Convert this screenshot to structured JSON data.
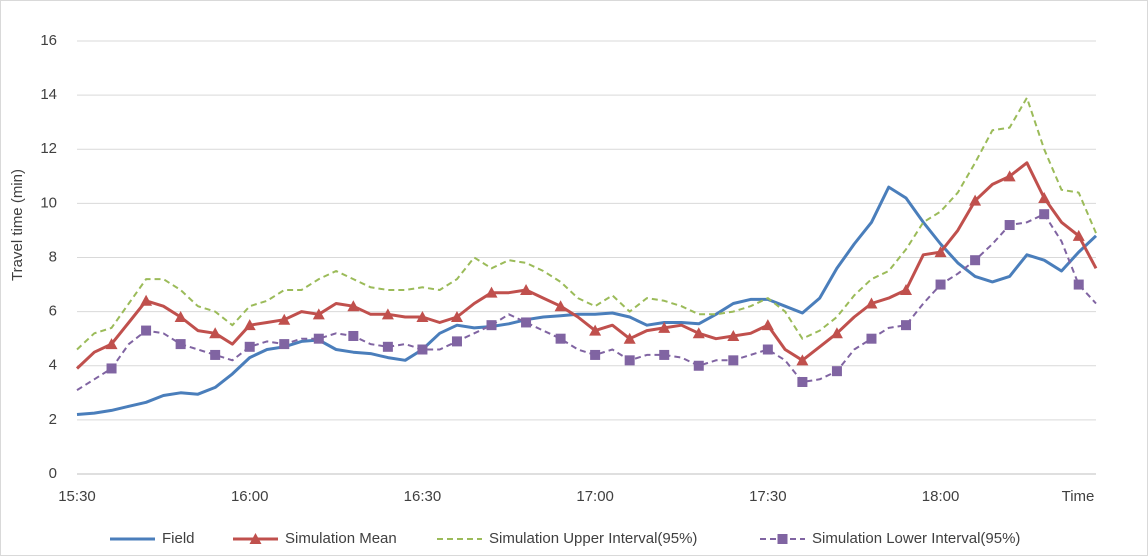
{
  "chart_data": {
    "type": "line",
    "y_label": "Travel time (min)",
    "x_label": "Time",
    "categories": [
      "15:30",
      null,
      null,
      null,
      null,
      null,
      null,
      null,
      null,
      null,
      "16:00",
      null,
      null,
      null,
      null,
      null,
      null,
      null,
      null,
      null,
      "16:30",
      null,
      null,
      null,
      null,
      null,
      null,
      null,
      null,
      null,
      "17:00",
      null,
      null,
      null,
      null,
      null,
      null,
      null,
      null,
      null,
      "17:30",
      null,
      null,
      null,
      null,
      null,
      null,
      null,
      null,
      null,
      "18:00",
      null,
      null,
      null,
      null,
      null,
      null,
      null,
      null,
      null
    ],
    "series": [
      {
        "name": "Field",
        "color": "#4a7ebb",
        "style": "solid",
        "marker": "none",
        "values": [
          2.2,
          2.25,
          2.35,
          2.5,
          2.65,
          2.9,
          3.0,
          2.95,
          3.2,
          3.7,
          4.3,
          4.6,
          4.7,
          4.9,
          4.95,
          4.6,
          4.5,
          4.45,
          4.3,
          4.2,
          4.6,
          5.2,
          5.5,
          5.4,
          5.45,
          5.55,
          5.7,
          5.8,
          5.85,
          5.9,
          5.9,
          5.95,
          5.8,
          5.5,
          5.6,
          5.6,
          5.55,
          5.9,
          6.3,
          6.45,
          6.45,
          6.2,
          5.95,
          6.5,
          7.6,
          8.5,
          9.3,
          10.6,
          10.2,
          9.3,
          8.5,
          7.8,
          7.3,
          7.1,
          7.3,
          8.1,
          7.9,
          7.5,
          8.2,
          8.8
        ]
      },
      {
        "name": "Simulation Mean",
        "color": "#c0504d",
        "style": "solid",
        "marker": "triangle",
        "values": [
          3.9,
          4.5,
          4.8,
          5.6,
          6.4,
          6.2,
          5.8,
          5.3,
          5.2,
          4.8,
          5.5,
          5.6,
          5.7,
          6.0,
          5.9,
          6.3,
          6.2,
          5.9,
          5.9,
          5.8,
          5.8,
          5.6,
          5.8,
          6.3,
          6.7,
          6.7,
          6.8,
          6.5,
          6.2,
          5.8,
          5.3,
          5.5,
          5.0,
          5.3,
          5.4,
          5.5,
          5.2,
          5.0,
          5.1,
          5.2,
          5.5,
          4.6,
          4.2,
          4.7,
          5.2,
          5.8,
          6.3,
          6.5,
          6.8,
          8.1,
          8.2,
          9.0,
          10.1,
          10.7,
          11.0,
          11.5,
          10.2,
          9.3,
          8.8,
          7.6
        ]
      },
      {
        "name": "Simulation Upper Interval(95%)",
        "color": "#9bbb59",
        "style": "dashed",
        "marker": "none",
        "values": [
          4.6,
          5.2,
          5.4,
          6.3,
          7.2,
          7.2,
          6.8,
          6.2,
          6.0,
          5.5,
          6.2,
          6.4,
          6.8,
          6.8,
          7.2,
          7.5,
          7.2,
          6.9,
          6.8,
          6.8,
          6.9,
          6.8,
          7.2,
          8.0,
          7.6,
          7.9,
          7.8,
          7.5,
          7.1,
          6.5,
          6.2,
          6.6,
          6.0,
          6.5,
          6.4,
          6.2,
          5.9,
          5.9,
          6.0,
          6.2,
          6.5,
          6.0,
          5.0,
          5.3,
          5.8,
          6.6,
          7.2,
          7.5,
          8.3,
          9.3,
          9.7,
          10.4,
          11.5,
          12.7,
          12.8,
          13.9,
          12.0,
          10.5,
          10.4,
          8.9
        ]
      },
      {
        "name": "Simulation Lower Interval(95%)",
        "color": "#8064a2",
        "style": "dashed",
        "marker": "square",
        "values": [
          3.1,
          3.5,
          3.9,
          4.8,
          5.3,
          5.2,
          4.8,
          4.6,
          4.4,
          4.2,
          4.7,
          4.9,
          4.8,
          5.0,
          5.0,
          5.2,
          5.1,
          4.8,
          4.7,
          4.8,
          4.6,
          4.6,
          4.9,
          5.2,
          5.5,
          5.9,
          5.6,
          5.3,
          5.0,
          4.6,
          4.4,
          4.6,
          4.2,
          4.4,
          4.4,
          4.3,
          4.0,
          4.2,
          4.2,
          4.4,
          4.6,
          4.2,
          3.4,
          3.5,
          3.8,
          4.6,
          5.0,
          5.4,
          5.5,
          6.3,
          7.0,
          7.4,
          7.9,
          8.5,
          9.2,
          9.3,
          9.6,
          8.6,
          7.0,
          6.3
        ]
      }
    ],
    "ylim": [
      0,
      16
    ],
    "yticks": [
      0,
      2,
      4,
      6,
      8,
      10,
      12,
      14,
      16
    ],
    "grid": true,
    "legend": "bottom"
  }
}
